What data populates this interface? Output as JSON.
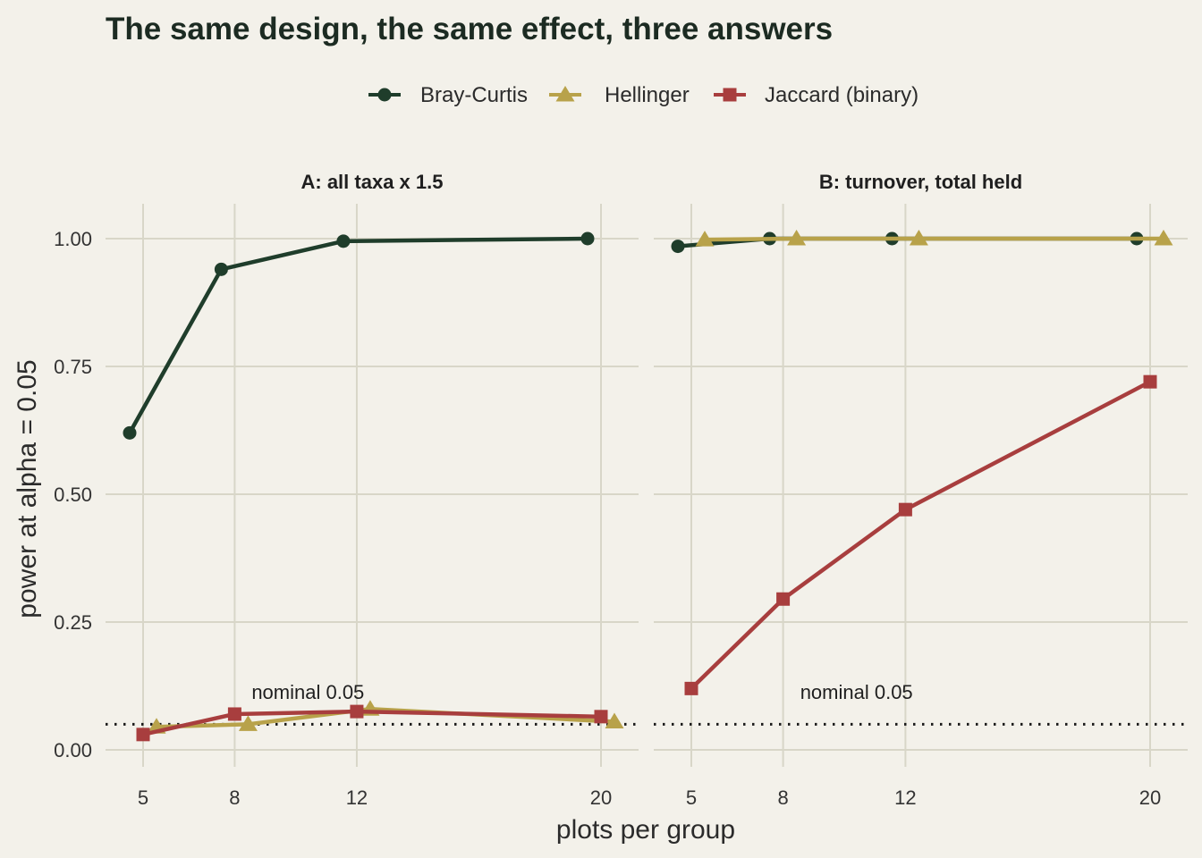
{
  "chart_data": {
    "type": "line",
    "title": "The same design, the same effect, three answers",
    "xlabel": "plots per group",
    "ylabel": "power at alpha = 0.05",
    "x_ticks": [
      5,
      8,
      12,
      20
    ],
    "y_ticks": [
      "0.00",
      "0.25",
      "0.50",
      "0.75",
      "1.00"
    ],
    "ylim": [
      0,
      1
    ],
    "grid": true,
    "legend_position": "top",
    "legend": [
      {
        "name": "Bray-Curtis",
        "color": "#1f3d2b",
        "marker": "circle"
      },
      {
        "name": "Hellinger",
        "color": "#b8a24a",
        "marker": "triangle"
      },
      {
        "name": "Jaccard (binary)",
        "color": "#a83e3e",
        "marker": "square"
      }
    ],
    "reference_line": {
      "y": 0.05,
      "style": "dotted",
      "label": "nominal 0.05"
    },
    "panels": [
      {
        "label": "A: all taxa x 1.5",
        "series": [
          {
            "name": "Bray-Curtis",
            "x": [
              5,
              8,
              12,
              20
            ],
            "y": [
              0.62,
              0.94,
              0.995,
              1.0
            ]
          },
          {
            "name": "Hellinger",
            "x": [
              5,
              8,
              12,
              20
            ],
            "y": [
              0.045,
              0.05,
              0.08,
              0.055
            ]
          },
          {
            "name": "Jaccard (binary)",
            "x": [
              5,
              8,
              12,
              20
            ],
            "y": [
              0.03,
              0.07,
              0.075,
              0.065
            ]
          }
        ]
      },
      {
        "label": "B: turnover, total held",
        "series": [
          {
            "name": "Bray-Curtis",
            "x": [
              5,
              8,
              12,
              20
            ],
            "y": [
              0.985,
              1.0,
              1.0,
              1.0
            ]
          },
          {
            "name": "Hellinger",
            "x": [
              5,
              8,
              12,
              20
            ],
            "y": [
              0.998,
              1.0,
              1.0,
              1.0
            ]
          },
          {
            "name": "Jaccard (binary)",
            "x": [
              5,
              8,
              12,
              20
            ],
            "y": [
              0.12,
              0.295,
              0.47,
              0.72
            ]
          }
        ]
      }
    ]
  }
}
